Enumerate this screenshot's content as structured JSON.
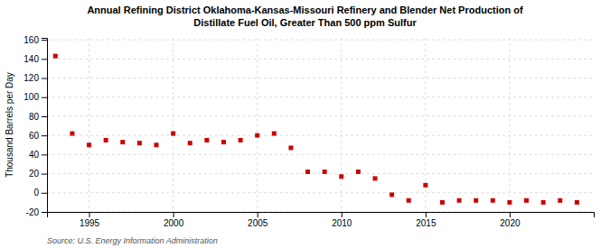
{
  "chart_data": {
    "type": "scatter",
    "title": "Annual Refining District Oklahoma-Kansas-Missouri Refinery and Blender Net Production of",
    "subtitle": "Distillate Fuel Oil, Greater Than 500 ppm Sulfur",
    "ylabel": "Thousand Barrels per Day",
    "source": "Source: U.S. Energy Information Administration",
    "x": [
      1993,
      1994,
      1995,
      1996,
      1997,
      1998,
      1999,
      2000,
      2001,
      2002,
      2003,
      2004,
      2005,
      2006,
      2007,
      2008,
      2009,
      2010,
      2011,
      2012,
      2013,
      2014,
      2015,
      2016,
      2017,
      2018,
      2019,
      2020,
      2021,
      2022,
      2023,
      2024
    ],
    "values": [
      143,
      62,
      50,
      55,
      53,
      52,
      50,
      62,
      52,
      55,
      53,
      55,
      60,
      62,
      47,
      22,
      22,
      17,
      22,
      15,
      -2,
      -8,
      8,
      -10,
      -8,
      -8,
      -8,
      -10,
      -8,
      -10,
      -8,
      -10
    ],
    "color": "#cc0000",
    "marker": "square",
    "xlim": [
      1992.5,
      2025
    ],
    "xticks": [
      1995,
      2000,
      2005,
      2010,
      2015,
      2020
    ],
    "ylim": [
      -20,
      162
    ],
    "yticks": [
      -20,
      0,
      20,
      40,
      60,
      80,
      100,
      120,
      140,
      160
    ],
    "grid": true
  }
}
